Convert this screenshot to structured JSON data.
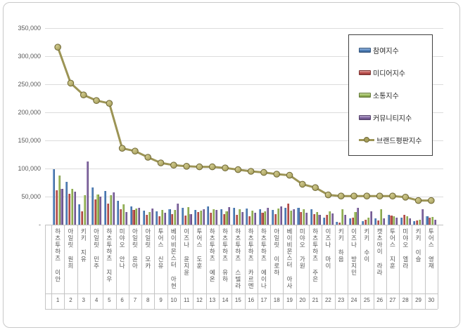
{
  "frame": {
    "border_color": "#c9c9c9",
    "background": "#ffffff"
  },
  "chart_data": {
    "type": "bar+line",
    "title": "",
    "grid": true,
    "legend_position": "top-right",
    "categories": [
      "하츠투하츠 이안",
      "아일릿 원희",
      "키키 지유",
      "아일릿 민주",
      "하츠투하츠 지우",
      "미야오 안나",
      "아일릿 윤아",
      "아일릿 모카",
      "투어스 신유",
      "베이비몬스터 아현",
      "이즈나 윤지윤",
      "투어스 도훈",
      "하츠투하츠 예온",
      "하츠투하츠 유하",
      "하츠투하츠 스텔라",
      "하츠투하츠 카르멘",
      "하츠투하츠 에이나",
      "아일릿 이로하",
      "베이비몬스터 아사",
      "미야오 가원",
      "하츠투하츠 주은",
      "이즈나 마이",
      "키키 하음",
      "이즈나 방지민",
      "키키 수이",
      "캣츠아이 라라",
      "투어스 지훈",
      "미야오 엘라",
      "키키 이슬",
      "투어스 영재"
    ],
    "rank_labels": [
      "1",
      "2",
      "3",
      "4",
      "5",
      "6",
      "7",
      "8",
      "9",
      "10",
      "11",
      "12",
      "13",
      "14",
      "15",
      "16",
      "17",
      "18",
      "19",
      "20",
      "21",
      "22",
      "23",
      "24",
      "25",
      "26",
      "27",
      "28",
      "29",
      "30"
    ],
    "y_axis": {
      "min": 0,
      "max": 350000,
      "tick_step": 50000,
      "tick_labels_top_to_bottom": [
        "350,000",
        "300,000",
        "250,000",
        "200,000",
        "150,000",
        "100,000",
        "50,000",
        "-"
      ]
    },
    "series": [
      {
        "name": "참여지수",
        "type": "bar",
        "color": "#4F81BD",
        "values": [
          99000,
          76000,
          36000,
          66000,
          60000,
          43000,
          33000,
          25000,
          24000,
          27000,
          30000,
          26000,
          32000,
          28000,
          30000,
          29000,
          27000,
          26000,
          30000,
          30000,
          27000,
          13000,
          5000,
          11000,
          6000,
          11000,
          17000,
          13000,
          6000,
          15000
        ]
      },
      {
        "name": "미디어지수",
        "type": "bar",
        "color": "#C0504D",
        "values": [
          61000,
          55000,
          24000,
          45000,
          37000,
          27000,
          26000,
          18000,
          15000,
          19000,
          16000,
          22000,
          21000,
          19000,
          17000,
          15000,
          21000,
          19000,
          37000,
          23000,
          19000,
          17000,
          4000,
          13000,
          9000,
          8000,
          16000,
          17000,
          8000,
          13000
        ]
      },
      {
        "name": "소통지수",
        "type": "bar",
        "color": "#9BBB59",
        "values": [
          88000,
          64000,
          52000,
          54000,
          53000,
          36000,
          29000,
          23000,
          26000,
          26000,
          31000,
          25000,
          27000,
          24000,
          27000,
          25000,
          24000,
          29000,
          25000,
          28000,
          23000,
          24000,
          27000,
          23000,
          13000,
          28000,
          15000,
          15000,
          9000,
          14000
        ]
      },
      {
        "name": "커뮤니티지수",
        "type": "bar",
        "color": "#8064A2",
        "values": [
          64000,
          59000,
          113000,
          50000,
          57000,
          22000,
          30000,
          29000,
          21000,
          38000,
          19000,
          28000,
          26000,
          31000,
          23000,
          21000,
          30000,
          32000,
          28000,
          21000,
          17000,
          20000,
          17000,
          30000,
          24000,
          11000,
          13000,
          11000,
          27000,
          9000
        ]
      },
      {
        "name": "브랜드평판지수",
        "type": "line",
        "color": "#9C9455",
        "marker_fill_light": "#CFC98E",
        "marker_fill": "#A79F5B",
        "marker_stroke": "#6F6836",
        "values": [
          316000,
          252000,
          231000,
          221000,
          216000,
          136000,
          131000,
          120000,
          110000,
          106000,
          104000,
          103000,
          103000,
          101000,
          98000,
          95000,
          93000,
          90000,
          88000,
          72000,
          66000,
          53000,
          51000,
          51000,
          51000,
          51000,
          51000,
          49000,
          43000,
          43000
        ]
      }
    ]
  }
}
